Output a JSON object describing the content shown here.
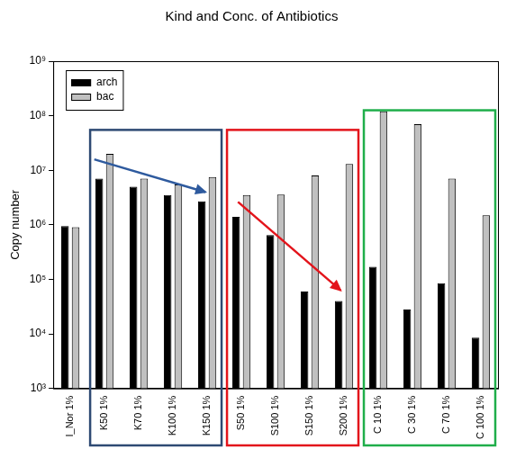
{
  "chart_data": {
    "type": "bar",
    "title": "Kind and Conc. of Antibiotics",
    "y_label": "Copy number",
    "categories": [
      "I_Nor 1%",
      "K50 1%",
      "K70 1%",
      "K100 1%",
      "K150 1%",
      "S50 1%",
      "S100 1%",
      "S150 1%",
      "S200 1%",
      "C 10 1%",
      "C 30 1%",
      "C 70 1%",
      "C 100 1%"
    ],
    "series": [
      {
        "name": "arch",
        "color": "#000000",
        "values": [
          950000,
          7000000,
          5000000,
          3500000,
          2700000,
          1400000,
          650000,
          60000,
          40000,
          170000,
          28000,
          85000,
          8500
        ]
      },
      {
        "name": "bac",
        "color": "#c0c0c0",
        "values": [
          900000,
          20000000,
          7000000,
          5500000,
          7500000,
          3500000,
          3600000,
          8000000,
          13000000,
          120000000,
          70000000,
          7000000,
          1500000
        ]
      }
    ],
    "ylim": [
      1000,
      1000000000
    ],
    "yticks": [
      {
        "value": 1000,
        "label": "10³"
      },
      {
        "value": 10000,
        "label": "10⁴"
      },
      {
        "value": 100000,
        "label": "10⁵"
      },
      {
        "value": 1000000,
        "label": "10⁶"
      },
      {
        "value": 10000000,
        "label": "10⁷"
      },
      {
        "value": 100000000,
        "label": "10⁸"
      },
      {
        "value": 1000000000,
        "label": "10⁹"
      }
    ],
    "log": "y",
    "grid": false,
    "legend": "top-left"
  }
}
